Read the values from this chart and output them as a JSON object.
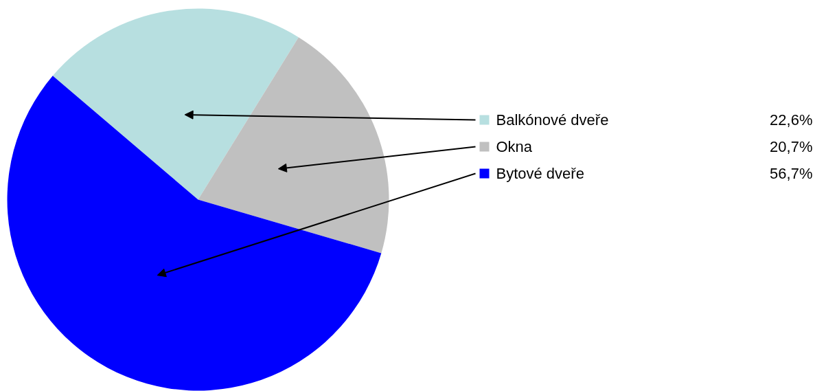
{
  "chart_data": {
    "type": "pie",
    "categories": [
      "Balkónové dveře",
      "Okna",
      "Bytové dveře"
    ],
    "values": [
      22.6,
      20.7,
      56.7
    ],
    "colors": [
      "#b7dfe0",
      "#c0c0c0",
      "#0000ff"
    ],
    "value_labels": [
      "22,6%",
      "20,7%",
      "56,7%"
    ],
    "legend": "right"
  }
}
